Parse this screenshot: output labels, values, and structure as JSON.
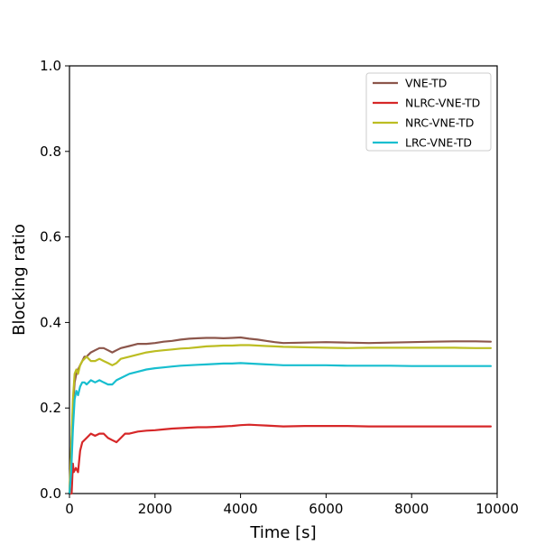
{
  "chart_data": {
    "type": "line",
    "xlabel": "Time [s]",
    "ylabel": "Blocking ratio",
    "xlim": [
      0,
      10000
    ],
    "ylim": [
      0,
      1.0
    ],
    "xticks": [
      0,
      2000,
      4000,
      6000,
      8000,
      10000
    ],
    "xtick_labels": [
      "0",
      "2000",
      "4000",
      "6000",
      "8000",
      "10000"
    ],
    "yticks": [
      0.0,
      0.2,
      0.4,
      0.6,
      0.8,
      1.0
    ],
    "ytick_labels": [
      "0.0",
      "0.2",
      "0.4",
      "0.6",
      "0.8",
      "1.0"
    ],
    "grid": false,
    "legend_position": "top-right",
    "series": [
      {
        "name": "VNE-TD",
        "color": "#8c564b",
        "x": [
          0,
          40,
          80,
          120,
          160,
          200,
          250,
          300,
          350,
          400,
          450,
          500,
          600,
          700,
          800,
          900,
          1000,
          1100,
          1200,
          1400,
          1600,
          1800,
          2000,
          2200,
          2400,
          2600,
          2800,
          3000,
          3200,
          3400,
          3600,
          3800,
          4000,
          4200,
          4400,
          4600,
          4800,
          5000,
          5500,
          6000,
          6500,
          7000,
          7500,
          8000,
          8500,
          9000,
          9500,
          9850
        ],
        "y": [
          0.0,
          0.1,
          0.2,
          0.26,
          0.28,
          0.29,
          0.3,
          0.31,
          0.32,
          0.32,
          0.325,
          0.33,
          0.335,
          0.34,
          0.34,
          0.335,
          0.33,
          0.335,
          0.34,
          0.345,
          0.35,
          0.35,
          0.352,
          0.355,
          0.357,
          0.36,
          0.362,
          0.363,
          0.364,
          0.364,
          0.363,
          0.364,
          0.365,
          0.362,
          0.36,
          0.357,
          0.354,
          0.352,
          0.353,
          0.354,
          0.353,
          0.352,
          0.353,
          0.354,
          0.355,
          0.356,
          0.356,
          0.355
        ]
      },
      {
        "name": "NLRC-VNE-TD",
        "color": "#d62728",
        "x": [
          0,
          50,
          80,
          100,
          150,
          200,
          250,
          300,
          400,
          500,
          600,
          700,
          800,
          900,
          1000,
          1100,
          1200,
          1300,
          1400,
          1600,
          1800,
          2000,
          2200,
          2400,
          2600,
          2800,
          3000,
          3200,
          3400,
          3600,
          3800,
          4000,
          4200,
          4400,
          4600,
          4800,
          5000,
          5500,
          6000,
          6500,
          7000,
          7500,
          8000,
          8500,
          9000,
          9500,
          9850
        ],
        "y": [
          0.0,
          0.0,
          0.07,
          0.05,
          0.06,
          0.05,
          0.1,
          0.12,
          0.13,
          0.14,
          0.135,
          0.14,
          0.14,
          0.13,
          0.125,
          0.12,
          0.13,
          0.14,
          0.14,
          0.145,
          0.147,
          0.148,
          0.15,
          0.152,
          0.153,
          0.154,
          0.155,
          0.155,
          0.156,
          0.157,
          0.158,
          0.16,
          0.161,
          0.16,
          0.159,
          0.158,
          0.157,
          0.158,
          0.158,
          0.158,
          0.157,
          0.157,
          0.157,
          0.157,
          0.157,
          0.157,
          0.157
        ]
      },
      {
        "name": "NRC-VNE-TD",
        "color": "#bcbd22",
        "x": [
          0,
          40,
          80,
          120,
          160,
          200,
          250,
          300,
          350,
          400,
          450,
          500,
          600,
          700,
          800,
          900,
          1000,
          1100,
          1200,
          1400,
          1600,
          1800,
          2000,
          2200,
          2400,
          2600,
          2800,
          3000,
          3200,
          3400,
          3600,
          3800,
          4000,
          4200,
          4400,
          4600,
          4800,
          5000,
          5500,
          6000,
          6500,
          7000,
          7500,
          8000,
          8500,
          9000,
          9500,
          9850
        ],
        "y": [
          0.0,
          0.1,
          0.22,
          0.28,
          0.29,
          0.28,
          0.3,
          0.31,
          0.315,
          0.32,
          0.315,
          0.31,
          0.31,
          0.315,
          0.31,
          0.305,
          0.3,
          0.305,
          0.315,
          0.32,
          0.325,
          0.33,
          0.333,
          0.335,
          0.337,
          0.339,
          0.34,
          0.342,
          0.344,
          0.345,
          0.346,
          0.346,
          0.347,
          0.347,
          0.346,
          0.345,
          0.344,
          0.343,
          0.342,
          0.341,
          0.34,
          0.341,
          0.341,
          0.341,
          0.341,
          0.341,
          0.34,
          0.34
        ]
      },
      {
        "name": "LRC-VNE-TD",
        "color": "#17becf",
        "x": [
          0,
          40,
          80,
          120,
          160,
          200,
          250,
          300,
          350,
          400,
          450,
          500,
          600,
          700,
          800,
          900,
          1000,
          1100,
          1200,
          1400,
          1600,
          1800,
          2000,
          2200,
          2400,
          2600,
          2800,
          3000,
          3200,
          3400,
          3600,
          3800,
          4000,
          4200,
          4400,
          4600,
          4800,
          5000,
          5500,
          6000,
          6500,
          7000,
          7500,
          8000,
          8500,
          9000,
          9500,
          9850
        ],
        "y": [
          0.0,
          0.05,
          0.15,
          0.22,
          0.24,
          0.23,
          0.25,
          0.26,
          0.26,
          0.255,
          0.26,
          0.265,
          0.26,
          0.265,
          0.26,
          0.255,
          0.255,
          0.265,
          0.27,
          0.28,
          0.285,
          0.29,
          0.293,
          0.295,
          0.297,
          0.299,
          0.3,
          0.301,
          0.302,
          0.303,
          0.304,
          0.304,
          0.305,
          0.304,
          0.303,
          0.302,
          0.301,
          0.3,
          0.3,
          0.3,
          0.299,
          0.299,
          0.299,
          0.298,
          0.298,
          0.298,
          0.298,
          0.298
        ]
      }
    ]
  }
}
